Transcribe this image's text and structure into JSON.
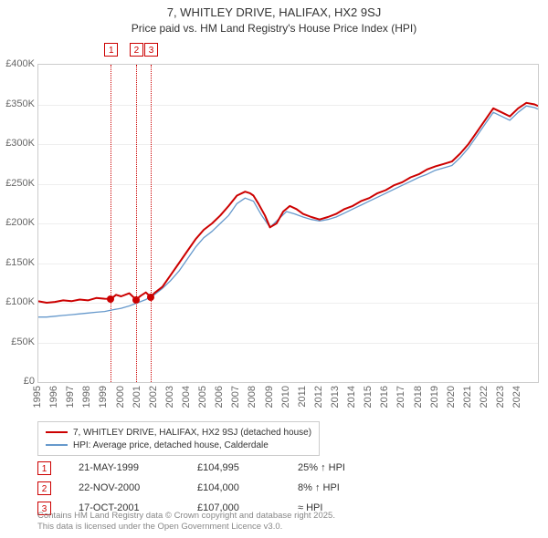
{
  "title": "7, WHITLEY DRIVE, HALIFAX, HX2 9SJ",
  "subtitle": "Price paid vs. HM Land Registry's House Price Index (HPI)",
  "chart": {
    "type": "line",
    "background_color": "#ffffff",
    "grid_color": "#eeeeee",
    "border_color": "#cccccc",
    "ylim": [
      0,
      400000
    ],
    "ytick_step": 50000,
    "yticks": [
      "£0",
      "£50K",
      "£100K",
      "£150K",
      "£200K",
      "£250K",
      "£300K",
      "£350K",
      "£400K"
    ],
    "xlim": [
      1995,
      2025.2
    ],
    "xticks": [
      1995,
      1996,
      1997,
      1998,
      1999,
      2000,
      2001,
      2002,
      2003,
      2004,
      2005,
      2006,
      2007,
      2008,
      2009,
      2010,
      2011,
      2012,
      2013,
      2014,
      2015,
      2016,
      2017,
      2018,
      2019,
      2020,
      2021,
      2022,
      2023,
      2024
    ],
    "series": [
      {
        "name": "7, WHITLEY DRIVE, HALIFAX, HX2 9SJ (detached house)",
        "color": "#cc0000",
        "width": 2,
        "points": [
          [
            1995.0,
            102000
          ],
          [
            1995.5,
            100000
          ],
          [
            1996.0,
            101000
          ],
          [
            1996.5,
            103000
          ],
          [
            1997.0,
            102000
          ],
          [
            1997.5,
            104000
          ],
          [
            1998.0,
            103000
          ],
          [
            1998.5,
            106000
          ],
          [
            1999.0,
            105000
          ],
          [
            1999.4,
            104995
          ],
          [
            1999.7,
            110000
          ],
          [
            2000.0,
            108000
          ],
          [
            2000.5,
            112000
          ],
          [
            2000.9,
            104000
          ],
          [
            2001.2,
            109000
          ],
          [
            2001.5,
            113000
          ],
          [
            2001.8,
            107000
          ],
          [
            2002.0,
            112000
          ],
          [
            2002.5,
            120000
          ],
          [
            2003.0,
            135000
          ],
          [
            2003.5,
            150000
          ],
          [
            2004.0,
            165000
          ],
          [
            2004.5,
            180000
          ],
          [
            2005.0,
            192000
          ],
          [
            2005.5,
            200000
          ],
          [
            2006.0,
            210000
          ],
          [
            2006.5,
            222000
          ],
          [
            2007.0,
            235000
          ],
          [
            2007.5,
            240000
          ],
          [
            2007.8,
            238000
          ],
          [
            2008.0,
            235000
          ],
          [
            2008.3,
            225000
          ],
          [
            2008.7,
            210000
          ],
          [
            2009.0,
            195000
          ],
          [
            2009.4,
            200000
          ],
          [
            2009.8,
            215000
          ],
          [
            2010.2,
            222000
          ],
          [
            2010.6,
            218000
          ],
          [
            2011.0,
            212000
          ],
          [
            2011.5,
            208000
          ],
          [
            2012.0,
            205000
          ],
          [
            2012.5,
            208000
          ],
          [
            2013.0,
            212000
          ],
          [
            2013.5,
            218000
          ],
          [
            2014.0,
            222000
          ],
          [
            2014.5,
            228000
          ],
          [
            2015.0,
            232000
          ],
          [
            2015.5,
            238000
          ],
          [
            2016.0,
            242000
          ],
          [
            2016.5,
            248000
          ],
          [
            2017.0,
            252000
          ],
          [
            2017.5,
            258000
          ],
          [
            2018.0,
            262000
          ],
          [
            2018.5,
            268000
          ],
          [
            2019.0,
            272000
          ],
          [
            2019.5,
            275000
          ],
          [
            2020.0,
            278000
          ],
          [
            2020.5,
            288000
          ],
          [
            2021.0,
            300000
          ],
          [
            2021.5,
            315000
          ],
          [
            2022.0,
            330000
          ],
          [
            2022.5,
            345000
          ],
          [
            2023.0,
            340000
          ],
          [
            2023.5,
            335000
          ],
          [
            2024.0,
            345000
          ],
          [
            2024.5,
            352000
          ],
          [
            2025.0,
            350000
          ],
          [
            2025.2,
            348000
          ]
        ]
      },
      {
        "name": "HPI: Average price, detached house, Calderdale",
        "color": "#6699cc",
        "width": 1.3,
        "points": [
          [
            1995.0,
            82000
          ],
          [
            1995.5,
            82000
          ],
          [
            1996.0,
            83000
          ],
          [
            1996.5,
            84000
          ],
          [
            1997.0,
            85000
          ],
          [
            1997.5,
            86000
          ],
          [
            1998.0,
            87000
          ],
          [
            1998.5,
            88000
          ],
          [
            1999.0,
            89000
          ],
          [
            1999.5,
            91000
          ],
          [
            2000.0,
            93000
          ],
          [
            2000.5,
            96000
          ],
          [
            2001.0,
            100000
          ],
          [
            2001.5,
            104000
          ],
          [
            2002.0,
            110000
          ],
          [
            2002.5,
            118000
          ],
          [
            2003.0,
            128000
          ],
          [
            2003.5,
            140000
          ],
          [
            2004.0,
            155000
          ],
          [
            2004.5,
            170000
          ],
          [
            2005.0,
            182000
          ],
          [
            2005.5,
            190000
          ],
          [
            2006.0,
            200000
          ],
          [
            2006.5,
            210000
          ],
          [
            2007.0,
            225000
          ],
          [
            2007.5,
            232000
          ],
          [
            2008.0,
            228000
          ],
          [
            2008.5,
            210000
          ],
          [
            2009.0,
            195000
          ],
          [
            2009.5,
            205000
          ],
          [
            2010.0,
            215000
          ],
          [
            2010.5,
            212000
          ],
          [
            2011.0,
            208000
          ],
          [
            2011.5,
            205000
          ],
          [
            2012.0,
            203000
          ],
          [
            2012.5,
            205000
          ],
          [
            2013.0,
            208000
          ],
          [
            2013.5,
            213000
          ],
          [
            2014.0,
            218000
          ],
          [
            2014.5,
            223000
          ],
          [
            2015.0,
            228000
          ],
          [
            2015.5,
            233000
          ],
          [
            2016.0,
            238000
          ],
          [
            2016.5,
            243000
          ],
          [
            2017.0,
            248000
          ],
          [
            2017.5,
            253000
          ],
          [
            2018.0,
            258000
          ],
          [
            2018.5,
            262000
          ],
          [
            2019.0,
            267000
          ],
          [
            2019.5,
            270000
          ],
          [
            2020.0,
            273000
          ],
          [
            2020.5,
            283000
          ],
          [
            2021.0,
            295000
          ],
          [
            2021.5,
            310000
          ],
          [
            2022.0,
            325000
          ],
          [
            2022.5,
            340000
          ],
          [
            2023.0,
            335000
          ],
          [
            2023.5,
            330000
          ],
          [
            2024.0,
            340000
          ],
          [
            2024.5,
            348000
          ],
          [
            2025.0,
            346000
          ],
          [
            2025.2,
            344000
          ]
        ]
      }
    ],
    "annotations": [
      {
        "n": "1",
        "x": 1999.38
      },
      {
        "n": "2",
        "x": 2000.9
      },
      {
        "n": "3",
        "x": 2001.79
      }
    ],
    "markers": [
      {
        "x": 1999.38,
        "y": 104995
      },
      {
        "x": 2000.9,
        "y": 104000
      },
      {
        "x": 2001.79,
        "y": 107000
      }
    ]
  },
  "legend": {
    "items": [
      {
        "color": "#cc0000",
        "label": "7, WHITLEY DRIVE, HALIFAX, HX2 9SJ (detached house)"
      },
      {
        "color": "#6699cc",
        "label": "HPI: Average price, detached house, Calderdale"
      }
    ]
  },
  "sales": [
    {
      "n": "1",
      "date": "21-MAY-1999",
      "price": "£104,995",
      "delta": "25% ↑ HPI"
    },
    {
      "n": "2",
      "date": "22-NOV-2000",
      "price": "£104,000",
      "delta": "8% ↑ HPI"
    },
    {
      "n": "3",
      "date": "17-OCT-2001",
      "price": "£107,000",
      "delta": "≈ HPI"
    }
  ],
  "footer": {
    "line1": "Contains HM Land Registry data © Crown copyright and database right 2025.",
    "line2": "This data is licensed under the Open Government Licence v3.0."
  },
  "title_fontsize": 13,
  "subtitle_fontsize": 12,
  "tick_fontsize": 11,
  "legend_fontsize": 10,
  "footer_fontsize": 9.5
}
